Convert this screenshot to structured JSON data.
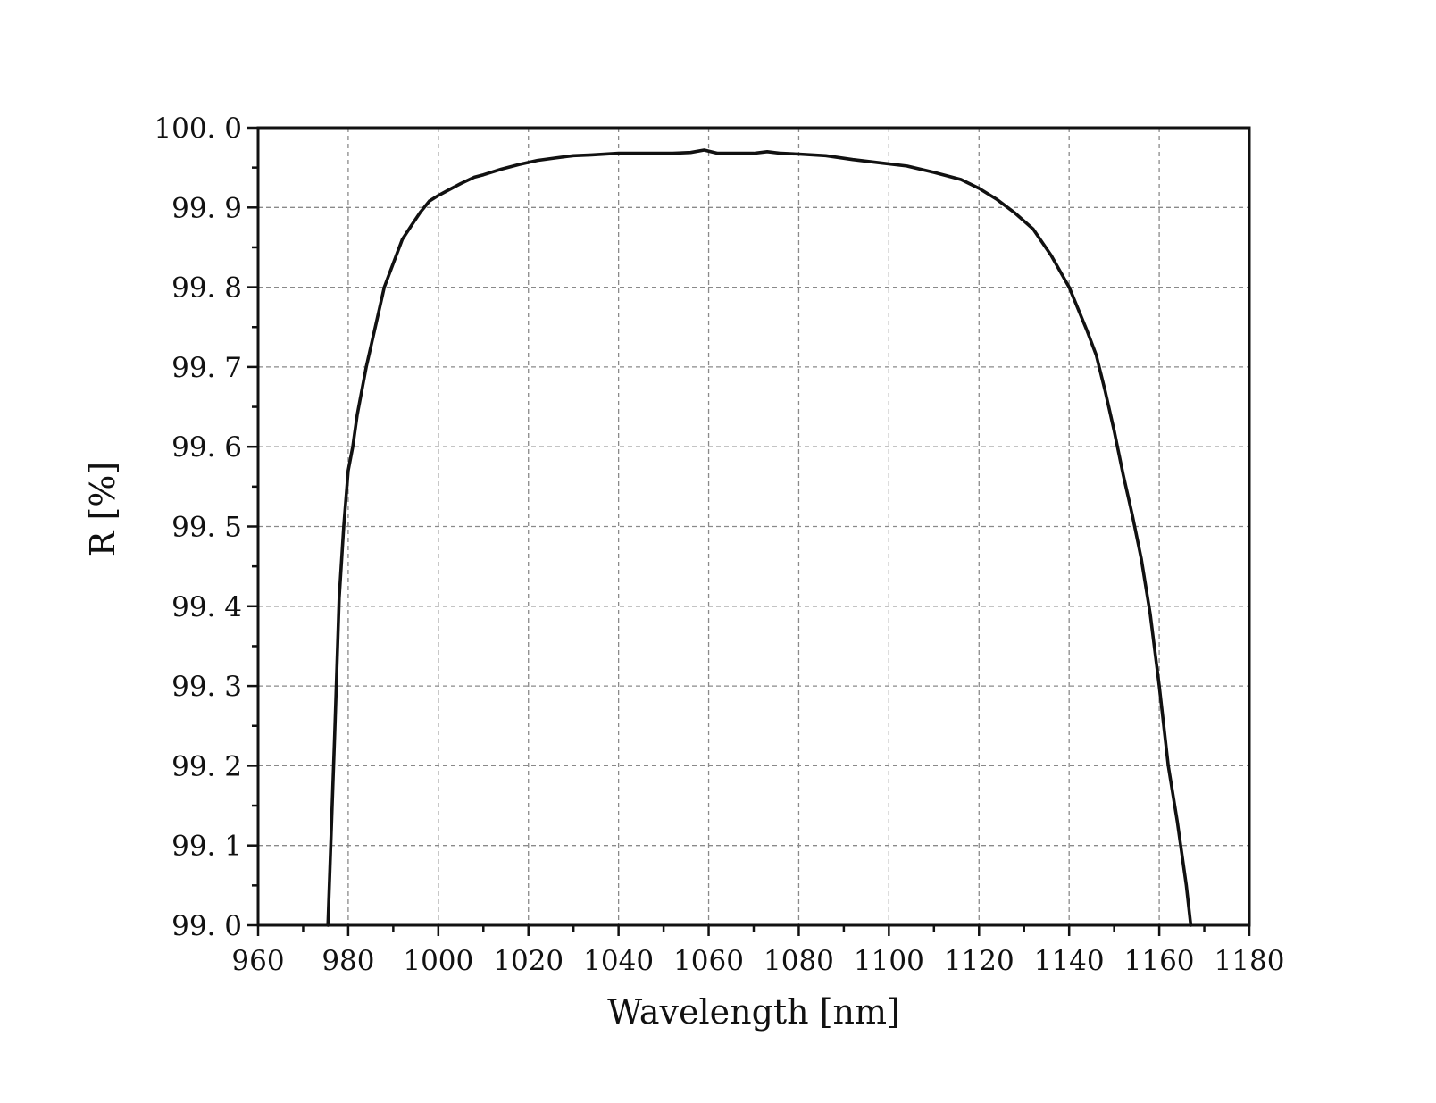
{
  "chart_data": {
    "type": "line",
    "title": "",
    "xlabel": "Wavelength [nm]",
    "ylabel": "R [%]",
    "xlim": [
      960,
      1180
    ],
    "ylim": [
      99.0,
      100.0
    ],
    "x_ticks": [
      960,
      980,
      1000,
      1020,
      1040,
      1060,
      1080,
      1100,
      1120,
      1140,
      1160,
      1180
    ],
    "x_tick_labels": [
      "960",
      "980",
      "1000",
      "1020",
      "1040",
      "1060",
      "1080",
      "1100",
      "1120",
      "1140",
      "1160",
      "1180"
    ],
    "y_ticks": [
      99.0,
      99.1,
      99.2,
      99.3,
      99.4,
      99.5,
      99.6,
      99.7,
      99.8,
      99.9,
      100.0
    ],
    "y_tick_labels": [
      "99. 0",
      "99. 1",
      "99. 2",
      "99. 3",
      "99. 4",
      "99. 5",
      "99. 6",
      "99. 7",
      "99. 8",
      "99. 9",
      "100. 0"
    ],
    "x_minor_step": 10,
    "y_minor_step": 0.05,
    "grid": true,
    "grid_style": "dashed",
    "legend": "none",
    "line_color": "#111111",
    "series": [
      {
        "x": [
          975.5,
          977,
          978,
          979,
          980,
          981,
          982,
          984,
          986,
          988,
          990,
          992,
          994,
          996,
          998,
          1000,
          1002,
          1005,
          1008,
          1010,
          1014,
          1018,
          1022,
          1026,
          1030,
          1034,
          1040,
          1046,
          1052,
          1056,
          1059,
          1062,
          1066,
          1070,
          1073,
          1076,
          1080,
          1086,
          1092,
          1098,
          1104,
          1110,
          1116,
          1120,
          1124,
          1128,
          1132,
          1136,
          1140,
          1144,
          1146,
          1148,
          1150,
          1152,
          1154,
          1156,
          1158,
          1160,
          1162,
          1164,
          1166,
          1167
        ],
        "y": [
          99.0,
          99.24,
          99.41,
          99.5,
          99.57,
          99.6,
          99.64,
          99.7,
          99.75,
          99.8,
          99.83,
          99.86,
          99.877,
          99.894,
          99.908,
          99.915,
          99.921,
          99.93,
          99.938,
          99.941,
          99.948,
          99.954,
          99.959,
          99.962,
          99.965,
          99.966,
          99.968,
          99.968,
          99.968,
          99.969,
          99.972,
          99.968,
          99.968,
          99.968,
          99.97,
          99.968,
          99.967,
          99.965,
          99.96,
          99.956,
          99.952,
          99.944,
          99.935,
          99.924,
          99.91,
          99.893,
          99.873,
          99.84,
          99.8,
          99.745,
          99.715,
          99.67,
          99.62,
          99.565,
          99.515,
          99.46,
          99.39,
          99.3,
          99.2,
          99.13,
          99.05,
          99.0
        ]
      }
    ]
  }
}
